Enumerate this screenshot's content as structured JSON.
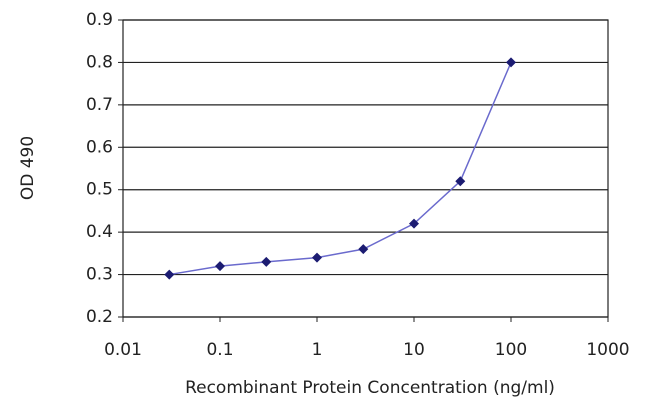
{
  "chart_data": {
    "type": "line",
    "x_label": "Recombinant Protein Concentration (ng/ml)",
    "y_label": "OD 490",
    "x": [
      0.03,
      0.1,
      0.3,
      1,
      3,
      10,
      30,
      100
    ],
    "values": [
      0.3,
      0.32,
      0.33,
      0.34,
      0.36,
      0.42,
      0.52,
      0.8
    ],
    "line_color": "#6a6acd",
    "marker_color": "#1c1c72",
    "xscale": "log",
    "xlim": [
      0.01,
      1000
    ],
    "xticks": [
      0.01,
      0.1,
      1,
      10,
      100,
      1000
    ],
    "ylim": [
      0.2,
      0.9
    ],
    "yticks": [
      0.2,
      0.3,
      0.4,
      0.5,
      0.6,
      0.7,
      0.8,
      0.9
    ],
    "grid": true
  }
}
